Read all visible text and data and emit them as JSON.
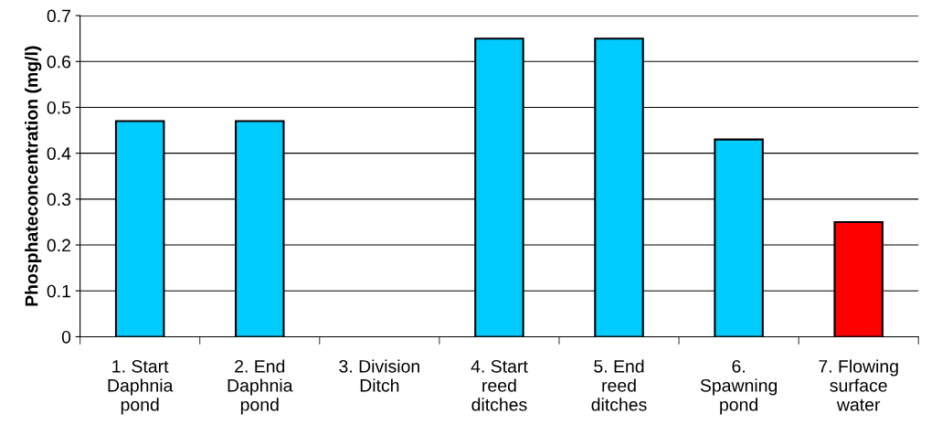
{
  "chart_data": {
    "type": "bar",
    "ylabel": "Phosphateconcentration (mg/l)",
    "categories": [
      "1. Start\nDaphnia\npond",
      "2. End\nDaphnia\npond",
      "3. Division\nDitch",
      "4. Start\nreed\nditches",
      "5. End\nreed\nditches",
      "6.\nSpawning\npond",
      "7. Flowing\nsurface\nwater"
    ],
    "values": [
      0.47,
      0.47,
      null,
      0.65,
      0.65,
      0.43,
      0.25
    ],
    "colors": [
      "#00ccff",
      "#00ccff",
      null,
      "#00ccff",
      "#00ccff",
      "#00ccff",
      "#ff0000"
    ],
    "ylim": [
      0,
      0.7
    ],
    "yticks": [
      0,
      0.1,
      0.2,
      0.3,
      0.4,
      0.5,
      0.6,
      0.7
    ],
    "grid": "y",
    "legend": false
  }
}
